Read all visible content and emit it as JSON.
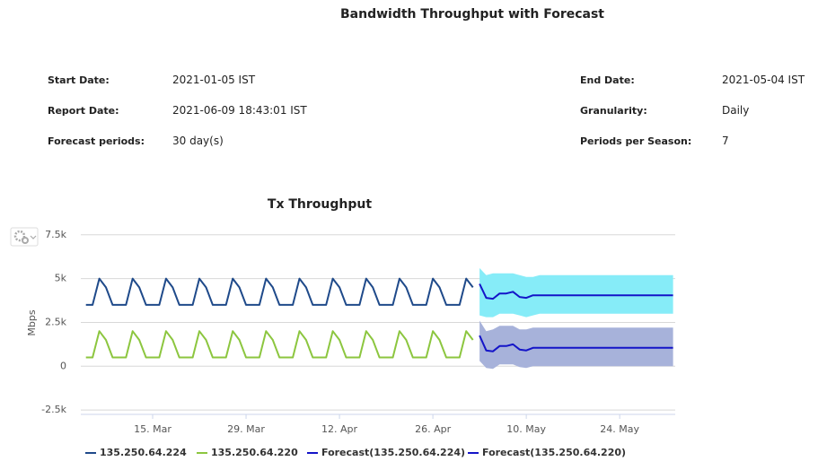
{
  "title": "Bandwidth Throughput with Forecast",
  "fields": [
    {
      "label": "Start Date:",
      "value": "2021-01-05 IST"
    },
    {
      "label": "End Date:",
      "value": "2021-05-04 IST"
    },
    {
      "label": "Report Date:",
      "value": "2021-06-09 18:43:01 IST"
    },
    {
      "label": "Granularity:",
      "value": "Daily"
    },
    {
      "label": "Forecast periods:",
      "value": "30 day(s)"
    },
    {
      "label": "Periods per Season:",
      "value": "7"
    }
  ],
  "chart_data": {
    "type": "line",
    "title": "Tx Throughput",
    "y_label": "Mbps",
    "ylim": [
      -2750,
      8000
    ],
    "yticks": [
      {
        "value": -2500,
        "label": "-2.5k"
      },
      0,
      {
        "value": 2500,
        "label": "2.5k"
      },
      {
        "value": 5000,
        "label": "5k"
      },
      {
        "value": 7500,
        "label": "7.5k"
      }
    ],
    "grid": true,
    "legend": "bottom",
    "x": [
      null,
      null,
      null,
      null,
      null,
      null,
      null,
      null,
      null,
      null,
      "15. Mar",
      null,
      null,
      null,
      null,
      null,
      null,
      null,
      null,
      null,
      null,
      null,
      null,
      null,
      "29. Mar",
      null,
      null,
      null,
      null,
      null,
      null,
      null,
      null,
      null,
      null,
      null,
      null,
      null,
      "12. Apr",
      null,
      null,
      null,
      null,
      null,
      null,
      null,
      null,
      null,
      null,
      null,
      null,
      null,
      "26. Apr",
      null,
      null,
      null,
      null,
      null,
      null,
      null,
      null,
      null,
      null,
      null,
      null,
      null,
      "10. May",
      null,
      null,
      null,
      null,
      null,
      null,
      null,
      null,
      null,
      null,
      null,
      null,
      null,
      "24. May",
      null,
      null,
      null,
      null,
      null,
      null,
      null,
      null
    ],
    "series": [
      {
        "name": "135.250.64.224",
        "color": "#1f4a8a",
        "values": [
          3500,
          3500,
          5000,
          4500,
          3500,
          3500,
          3500,
          5000,
          4500,
          3500,
          3500,
          3500,
          5000,
          4500,
          3500,
          3500,
          3500,
          5000,
          4500,
          3500,
          3500,
          3500,
          5000,
          4500,
          3500,
          3500,
          3500,
          5000,
          4500,
          3500,
          3500,
          3500,
          5000,
          4500,
          3500,
          3500,
          3500,
          5000,
          4500,
          3500,
          3500,
          3500,
          5000,
          4500,
          3500,
          3500,
          3500,
          5000,
          4500,
          3500,
          3500,
          3500,
          5000,
          4500,
          3500,
          3500,
          3500,
          5000,
          4500,
          null,
          null,
          null,
          null,
          null,
          null,
          null,
          null,
          null,
          null,
          null,
          null,
          null,
          null,
          null,
          null,
          null,
          null,
          null,
          null,
          null,
          null,
          null,
          null,
          null,
          null,
          null,
          null,
          null,
          null
        ]
      },
      {
        "name": "135.250.64.220",
        "color": "#8cc63f",
        "values": [
          500,
          500,
          2000,
          1500,
          500,
          500,
          500,
          2000,
          1500,
          500,
          500,
          500,
          2000,
          1500,
          500,
          500,
          500,
          2000,
          1500,
          500,
          500,
          500,
          2000,
          1500,
          500,
          500,
          500,
          2000,
          1500,
          500,
          500,
          500,
          2000,
          1500,
          500,
          500,
          500,
          2000,
          1500,
          500,
          500,
          500,
          2000,
          1500,
          500,
          500,
          500,
          2000,
          1500,
          500,
          500,
          500,
          2000,
          1500,
          500,
          500,
          500,
          2000,
          1500,
          null,
          null,
          null,
          null,
          null,
          null,
          null,
          null,
          null,
          null,
          null,
          null,
          null,
          null,
          null,
          null,
          null,
          null,
          null,
          null,
          null,
          null,
          null,
          null,
          null,
          null,
          null,
          null,
          null,
          null
        ]
      },
      {
        "name": "Forecast(135.250.64.224)",
        "color": "#1414c8",
        "values": [
          null,
          null,
          null,
          null,
          null,
          null,
          null,
          null,
          null,
          null,
          null,
          null,
          null,
          null,
          null,
          null,
          null,
          null,
          null,
          null,
          null,
          null,
          null,
          null,
          null,
          null,
          null,
          null,
          null,
          null,
          null,
          null,
          null,
          null,
          null,
          null,
          null,
          null,
          null,
          null,
          null,
          null,
          null,
          null,
          null,
          null,
          null,
          null,
          null,
          null,
          null,
          null,
          null,
          null,
          null,
          null,
          null,
          null,
          null,
          4700,
          3900,
          3850,
          4150,
          4150,
          4250,
          3950,
          3900,
          4050,
          4050,
          4050,
          4050,
          4050,
          4050,
          4050,
          4050,
          4050,
          4050,
          4050,
          4050,
          4050,
          4050,
          4050,
          4050,
          4050,
          4050,
          4050,
          4050,
          4050,
          4050
        ]
      },
      {
        "name": "Forecast(135.250.64.220)",
        "color": "#1414c8",
        "values": [
          null,
          null,
          null,
          null,
          null,
          null,
          null,
          null,
          null,
          null,
          null,
          null,
          null,
          null,
          null,
          null,
          null,
          null,
          null,
          null,
          null,
          null,
          null,
          null,
          null,
          null,
          null,
          null,
          null,
          null,
          null,
          null,
          null,
          null,
          null,
          null,
          null,
          null,
          null,
          null,
          null,
          null,
          null,
          null,
          null,
          null,
          null,
          null,
          null,
          null,
          null,
          null,
          null,
          null,
          null,
          null,
          null,
          null,
          null,
          1750,
          900,
          850,
          1150,
          1150,
          1250,
          950,
          900,
          1050,
          1050,
          1050,
          1050,
          1050,
          1050,
          1050,
          1050,
          1050,
          1050,
          1050,
          1050,
          1050,
          1050,
          1050,
          1050,
          1050,
          1050,
          1050,
          1050,
          1050,
          1050
        ]
      }
    ],
    "bands": [
      {
        "color": "#86ecf8",
        "upper": [
          null,
          null,
          null,
          null,
          null,
          null,
          null,
          null,
          null,
          null,
          null,
          null,
          null,
          null,
          null,
          null,
          null,
          null,
          null,
          null,
          null,
          null,
          null,
          null,
          null,
          null,
          null,
          null,
          null,
          null,
          null,
          null,
          null,
          null,
          null,
          null,
          null,
          null,
          null,
          null,
          null,
          null,
          null,
          null,
          null,
          null,
          null,
          null,
          null,
          null,
          null,
          null,
          null,
          null,
          null,
          null,
          null,
          null,
          null,
          5600,
          5200,
          5300,
          5300,
          5300,
          5300,
          5200,
          5100,
          5100,
          5200,
          5200,
          5200,
          5200,
          5200,
          5200,
          5200,
          5200,
          5200,
          5200,
          5200,
          5200,
          5200,
          5200,
          5200,
          5200,
          5200,
          5200,
          5200,
          5200,
          5200
        ],
        "lower": [
          null,
          null,
          null,
          null,
          null,
          null,
          null,
          null,
          null,
          null,
          null,
          null,
          null,
          null,
          null,
          null,
          null,
          null,
          null,
          null,
          null,
          null,
          null,
          null,
          null,
          null,
          null,
          null,
          null,
          null,
          null,
          null,
          null,
          null,
          null,
          null,
          null,
          null,
          null,
          null,
          null,
          null,
          null,
          null,
          null,
          null,
          null,
          null,
          null,
          null,
          null,
          null,
          null,
          null,
          null,
          null,
          null,
          null,
          null,
          2900,
          2800,
          2800,
          3000,
          3000,
          3000,
          2900,
          2800,
          2900,
          3000,
          3000,
          3000,
          3000,
          3000,
          3000,
          3000,
          3000,
          3000,
          3000,
          3000,
          3000,
          3000,
          3000,
          3000,
          3000,
          3000,
          3000,
          3000,
          3000,
          3000
        ]
      },
      {
        "color": "#a7b2da",
        "upper": [
          null,
          null,
          null,
          null,
          null,
          null,
          null,
          null,
          null,
          null,
          null,
          null,
          null,
          null,
          null,
          null,
          null,
          null,
          null,
          null,
          null,
          null,
          null,
          null,
          null,
          null,
          null,
          null,
          null,
          null,
          null,
          null,
          null,
          null,
          null,
          null,
          null,
          null,
          null,
          null,
          null,
          null,
          null,
          null,
          null,
          null,
          null,
          null,
          null,
          null,
          null,
          null,
          null,
          null,
          null,
          null,
          null,
          null,
          null,
          2600,
          2000,
          2100,
          2300,
          2300,
          2300,
          2100,
          2100,
          2200,
          2200,
          2200,
          2200,
          2200,
          2200,
          2200,
          2200,
          2200,
          2200,
          2200,
          2200,
          2200,
          2200,
          2200,
          2200,
          2200,
          2200,
          2200,
          2200,
          2200,
          2200
        ],
        "lower": [
          null,
          null,
          null,
          null,
          null,
          null,
          null,
          null,
          null,
          null,
          null,
          null,
          null,
          null,
          null,
          null,
          null,
          null,
          null,
          null,
          null,
          null,
          null,
          null,
          null,
          null,
          null,
          null,
          null,
          null,
          null,
          null,
          null,
          null,
          null,
          null,
          null,
          null,
          null,
          null,
          null,
          null,
          null,
          null,
          null,
          null,
          null,
          null,
          null,
          null,
          null,
          null,
          null,
          null,
          null,
          null,
          null,
          null,
          null,
          300,
          -100,
          -150,
          100,
          100,
          100,
          -50,
          -100,
          0,
          0,
          0,
          0,
          0,
          0,
          0,
          0,
          0,
          0,
          0,
          0,
          0,
          0,
          0,
          0,
          0,
          0,
          0,
          0,
          0,
          0
        ]
      }
    ]
  }
}
